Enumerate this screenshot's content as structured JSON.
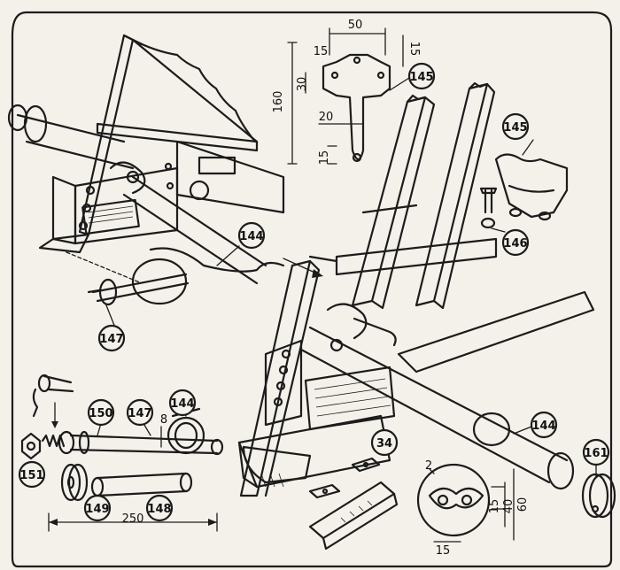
{
  "callouts": {
    "c145_top": "145",
    "c145_right": "145",
    "c146": "146",
    "c144_mid": "144",
    "c144_small": "144",
    "c144_right": "144",
    "c147_left": "147",
    "c147_small": "147",
    "c150": "150",
    "c151": "151",
    "c149": "149",
    "c148": "148",
    "c34": "34",
    "c161": "161"
  },
  "dimensions": {
    "d50": "50",
    "d15_left": "15",
    "d15_right": "15",
    "d30": "30",
    "d160": "160",
    "d20": "20",
    "d15_bottom": "15",
    "d8": "8",
    "d250": "250",
    "d2": "2",
    "d15_washer_a": "15",
    "d40": "40",
    "d60": "60",
    "d15_washer_b": "15"
  }
}
